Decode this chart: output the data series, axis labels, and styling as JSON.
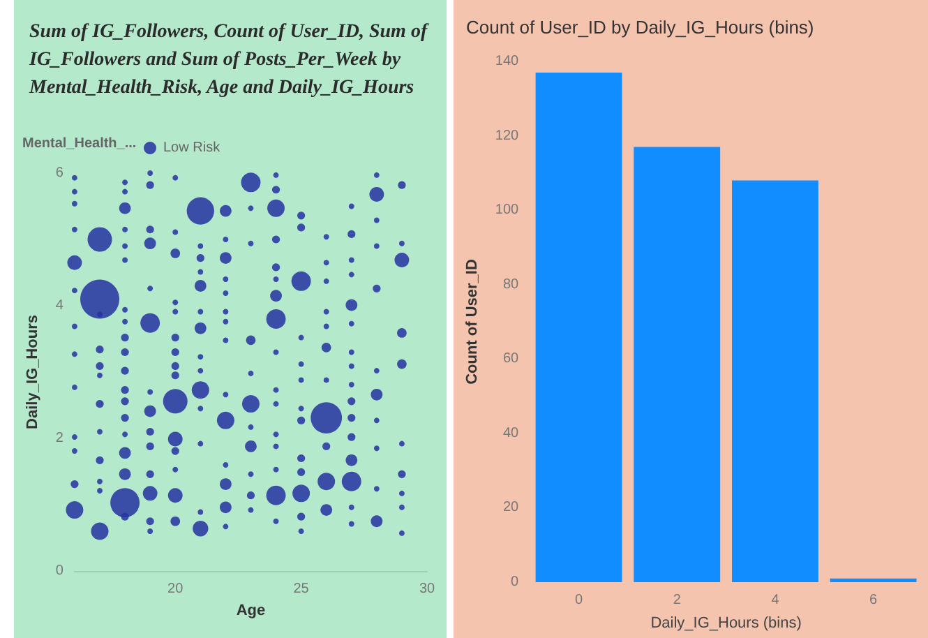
{
  "chart_data": [
    {
      "type": "bubble",
      "title": "Sum of IG_Followers, Count of User_ID, Sum of IG_Followers and Sum of Posts_Per_Week by Mental_Health_Risk, Age and Daily_IG_Hours",
      "xlabel": "Age",
      "ylabel": "Daily_IG_Hours",
      "legend_title": "Mental_Health_...",
      "legend": "top left",
      "xlim": [
        16,
        30
      ],
      "xticks": [
        20,
        25,
        30
      ],
      "ylim": [
        0,
        6
      ],
      "yticks": [
        0,
        2,
        4,
        6
      ],
      "series": [
        {
          "name": "Low Risk",
          "color": "#2433a0",
          "x": [
            16,
            16,
            16,
            16,
            16,
            16,
            16,
            16,
            16,
            16,
            16,
            16,
            16,
            17,
            17,
            17,
            17,
            17,
            17,
            17,
            17,
            17,
            17,
            17,
            17,
            18,
            18,
            18,
            18,
            18,
            18,
            18,
            18,
            18,
            18,
            18,
            18,
            18,
            18,
            18,
            18,
            18,
            18,
            18,
            19,
            19,
            19,
            19,
            19,
            19,
            19,
            19,
            19,
            19,
            19,
            19,
            19,
            19,
            20,
            20,
            20,
            20,
            20,
            20,
            20,
            20,
            20,
            20,
            20,
            20,
            20,
            20,
            20,
            21,
            21,
            21,
            21,
            21,
            21,
            21,
            21,
            21,
            21,
            21,
            21,
            21,
            21,
            22,
            22,
            22,
            22,
            22,
            22,
            22,
            22,
            22,
            22,
            22,
            22,
            22,
            22,
            23,
            23,
            23,
            23,
            23,
            23,
            23,
            23,
            23,
            23,
            23,
            24,
            24,
            24,
            24,
            24,
            24,
            24,
            24,
            24,
            24,
            24,
            24,
            24,
            24,
            24,
            24,
            25,
            25,
            25,
            25,
            25,
            25,
            25,
            25,
            25,
            25,
            25,
            25,
            25,
            26,
            26,
            26,
            26,
            26,
            26,
            26,
            26,
            26,
            26,
            26,
            27,
            27,
            27,
            27,
            27,
            27,
            27,
            27,
            27,
            27,
            27,
            27,
            27,
            27,
            27,
            27,
            28,
            28,
            28,
            28,
            28,
            28,
            28,
            28,
            28,
            28,
            28,
            29,
            29,
            29,
            29,
            29,
            29,
            29,
            29,
            29,
            29
          ],
          "values": [
            5.93,
            5.72,
            5.54,
            5.15,
            4.65,
            4.23,
            3.69,
            3.27,
            2.77,
            2.02,
            1.81,
            1.31,
            0.92,
            5.0,
            4.1,
            3.87,
            3.34,
            3.09,
            2.95,
            2.52,
            2.1,
            1.67,
            1.35,
            1.21,
            0.6,
            5.86,
            5.72,
            5.47,
            5.15,
            4.9,
            4.69,
            3.94,
            3.76,
            3.52,
            3.3,
            3.02,
            2.73,
            2.56,
            2.31,
            2.06,
            1.78,
            1.46,
            1.03,
            0.82,
            6.0,
            5.82,
            5.15,
            4.94,
            4.26,
            3.74,
            2.7,
            2.41,
            2.1,
            1.88,
            1.46,
            1.17,
            0.75,
            0.6,
            5.93,
            5.11,
            4.79,
            4.05,
            3.91,
            3.52,
            3.3,
            3.09,
            2.95,
            2.56,
            1.99,
            1.81,
            1.53,
            1.14,
            0.75,
            5.43,
            4.9,
            4.72,
            4.51,
            4.3,
            3.91,
            3.66,
            3.23,
            3.02,
            2.73,
            2.45,
            1.92,
            0.89,
            0.64,
            5.43,
            5.0,
            4.72,
            4.4,
            4.19,
            3.91,
            3.76,
            3.48,
            2.66,
            2.27,
            1.6,
            1.31,
            0.96,
            0.67,
            5.86,
            5.47,
            4.94,
            3.48,
            2.98,
            2.52,
            2.17,
            1.88,
            1.46,
            1.14,
            0.92,
            5.97,
            5.75,
            5.47,
            5.0,
            4.58,
            4.4,
            4.15,
            3.8,
            3.3,
            2.73,
            2.52,
            2.06,
            1.88,
            1.53,
            1.14,
            0.75,
            5.36,
            5.18,
            4.37,
            3.52,
            3.12,
            2.88,
            2.45,
            2.27,
            1.7,
            1.49,
            1.17,
            0.82,
            0.6,
            5.04,
            4.65,
            4.37,
            3.91,
            3.69,
            3.37,
            2.88,
            2.31,
            1.88,
            1.35,
            0.92,
            5.5,
            5.08,
            4.69,
            4.47,
            4.01,
            3.73,
            3.3,
            3.09,
            2.81,
            2.56,
            2.31,
            2.02,
            1.67,
            1.35,
            0.96,
            0.71,
            5.97,
            5.68,
            5.29,
            4.9,
            4.26,
            3.02,
            2.66,
            2.27,
            1.85,
            1.24,
            0.75,
            5.82,
            4.94,
            4.69,
            3.59,
            3.12,
            1.92,
            1.46,
            1.17,
            0.96,
            0.57
          ],
          "sizes": [
            0.02,
            0.02,
            0.02,
            0.02,
            0.14,
            0.02,
            0.02,
            0.02,
            0.02,
            0.02,
            0.02,
            0.04,
            0.2,
            0.39,
            1,
            0.02,
            0.04,
            0.04,
            0.02,
            0.04,
            0.02,
            0.04,
            0.02,
            0.02,
            0.2,
            0.02,
            0.02,
            0.09,
            0.02,
            0.02,
            0.02,
            0.02,
            0.02,
            0.04,
            0.04,
            0.04,
            0.04,
            0.04,
            0.04,
            0.02,
            0.09,
            0.09,
            0.56,
            0.04,
            0.02,
            0.04,
            0.04,
            0.09,
            0.02,
            0.25,
            0.02,
            0.09,
            0.04,
            0.04,
            0.04,
            0.14,
            0.04,
            0.02,
            0.02,
            0.02,
            0.06,
            0.02,
            0.02,
            0.04,
            0.04,
            0.04,
            0.04,
            0.39,
            0.14,
            0.04,
            0.02,
            0.14,
            0.06,
            0.49,
            0.02,
            0.04,
            0.02,
            0.09,
            0.02,
            0.09,
            0.02,
            0.02,
            0.2,
            0.02,
            0.02,
            0.02,
            0.16,
            0.09,
            0.02,
            0.09,
            0.02,
            0.02,
            0.02,
            0.02,
            0.02,
            0.02,
            0.2,
            0.02,
            0.09,
            0.09,
            0.02,
            0.25,
            0.02,
            0.02,
            0.06,
            0.02,
            0.2,
            0.02,
            0.09,
            0.02,
            0.04,
            0.02,
            0.02,
            0.04,
            0.2,
            0.04,
            0.04,
            0.02,
            0.09,
            0.25,
            0.02,
            0.02,
            0.02,
            0.02,
            0.02,
            0.02,
            0.25,
            0.02,
            0.04,
            0.04,
            0.25,
            0.02,
            0.02,
            0.02,
            0.02,
            0.04,
            0.04,
            0.04,
            0.2,
            0.04,
            0.02,
            0.02,
            0.02,
            0.02,
            0.02,
            0.02,
            0.06,
            0.02,
            0.64,
            0.04,
            0.2,
            0.09,
            0.02,
            0.04,
            0.02,
            0.02,
            0.09,
            0.02,
            0.02,
            0.02,
            0.02,
            0.04,
            0.04,
            0.04,
            0.09,
            0.25,
            0.02,
            0.02,
            0.02,
            0.14,
            0.02,
            0.02,
            0.04,
            0.02,
            0.09,
            0.02,
            0.02,
            0.02,
            0.09,
            0.04,
            0.02,
            0.14,
            0.06,
            0.06,
            0.02,
            0.04,
            0.02,
            0.02,
            0.02
          ]
        }
      ]
    },
    {
      "type": "bar",
      "title": "Count of User_ID by Daily_IG_Hours (bins)",
      "xlabel": "Daily_IG_Hours (bins)",
      "ylabel": "Count of User_ID",
      "categories": [
        "0",
        "2",
        "4",
        "6"
      ],
      "values": [
        137,
        117,
        108,
        1
      ],
      "color": "#118dff",
      "ylim": [
        0,
        140
      ],
      "yticks": [
        0,
        20,
        40,
        60,
        80,
        100,
        120,
        140
      ]
    }
  ]
}
